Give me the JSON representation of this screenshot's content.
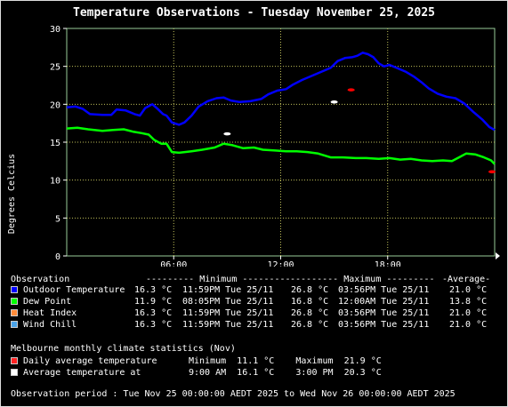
{
  "title": "Temperature Observations - Tuesday November 25, 2025",
  "chart_data": {
    "type": "line",
    "ylabel": "Degrees Celcius",
    "ylim": [
      0,
      30
    ],
    "yticks": [
      "0",
      "5",
      "10",
      "15",
      "20",
      "25",
      "30"
    ],
    "xlim": [
      0,
      24
    ],
    "xticks": [
      {
        "x": 6,
        "label": "06:00"
      },
      {
        "x": 12,
        "label": "12:00"
      },
      {
        "x": 18,
        "label": "18:00"
      }
    ],
    "grid": true,
    "series": [
      {
        "name": "Outdoor Temperature",
        "color": "#0000ff",
        "points": [
          [
            0,
            19.6
          ],
          [
            0.5,
            19.7
          ],
          [
            0.9,
            19.4
          ],
          [
            1.3,
            18.7
          ],
          [
            2,
            18.6
          ],
          [
            2.5,
            18.6
          ],
          [
            2.8,
            19.3
          ],
          [
            3.3,
            19.2
          ],
          [
            3.8,
            18.7
          ],
          [
            4.1,
            18.5
          ],
          [
            4.4,
            19.5
          ],
          [
            4.8,
            20.0
          ],
          [
            5.1,
            19.4
          ],
          [
            5.4,
            18.7
          ],
          [
            5.6,
            18.5
          ],
          [
            5.9,
            17.6
          ],
          [
            6.3,
            17.3
          ],
          [
            6.6,
            17.6
          ],
          [
            7.0,
            18.5
          ],
          [
            7.4,
            19.7
          ],
          [
            7.9,
            20.4
          ],
          [
            8.4,
            20.8
          ],
          [
            8.8,
            20.9
          ],
          [
            9.2,
            20.5
          ],
          [
            9.7,
            20.3
          ],
          [
            10.3,
            20.4
          ],
          [
            10.9,
            20.7
          ],
          [
            11.3,
            21.3
          ],
          [
            11.8,
            21.8
          ],
          [
            12.3,
            22.0
          ],
          [
            12.7,
            22.6
          ],
          [
            13.2,
            23.2
          ],
          [
            13.8,
            23.8
          ],
          [
            14.3,
            24.3
          ],
          [
            14.8,
            24.8
          ],
          [
            15.2,
            25.7
          ],
          [
            15.6,
            26.1
          ],
          [
            16.0,
            26.2
          ],
          [
            16.3,
            26.4
          ],
          [
            16.6,
            26.8
          ],
          [
            16.9,
            26.6
          ],
          [
            17.2,
            26.2
          ],
          [
            17.5,
            25.4
          ],
          [
            17.8,
            25.0
          ],
          [
            18.1,
            25.2
          ],
          [
            18.5,
            24.8
          ],
          [
            19.0,
            24.3
          ],
          [
            19.5,
            23.6
          ],
          [
            19.9,
            22.9
          ],
          [
            20.3,
            22.1
          ],
          [
            20.8,
            21.4
          ],
          [
            21.3,
            21.0
          ],
          [
            21.8,
            20.8
          ],
          [
            22.3,
            20.1
          ],
          [
            22.8,
            19.0
          ],
          [
            23.3,
            18.0
          ],
          [
            23.7,
            17.0
          ],
          [
            24,
            16.6
          ]
        ]
      },
      {
        "name": "Dew Point",
        "color": "#00ff00",
        "points": [
          [
            0,
            16.8
          ],
          [
            0.6,
            16.9
          ],
          [
            1.2,
            16.7
          ],
          [
            2,
            16.5
          ],
          [
            2.6,
            16.6
          ],
          [
            3.2,
            16.7
          ],
          [
            3.7,
            16.4
          ],
          [
            4.2,
            16.2
          ],
          [
            4.6,
            16.0
          ],
          [
            4.9,
            15.3
          ],
          [
            5.3,
            14.8
          ],
          [
            5.6,
            14.8
          ],
          [
            5.9,
            13.7
          ],
          [
            6.3,
            13.6
          ],
          [
            7.0,
            13.8
          ],
          [
            7.6,
            14.0
          ],
          [
            8.3,
            14.3
          ],
          [
            8.8,
            14.8
          ],
          [
            9.3,
            14.6
          ],
          [
            9.9,
            14.2
          ],
          [
            10.5,
            14.3
          ],
          [
            11.0,
            14.0
          ],
          [
            11.7,
            13.9
          ],
          [
            12.3,
            13.8
          ],
          [
            12.9,
            13.8
          ],
          [
            13.5,
            13.7
          ],
          [
            14.1,
            13.5
          ],
          [
            14.8,
            13.0
          ],
          [
            15.5,
            13.0
          ],
          [
            16.2,
            12.9
          ],
          [
            16.8,
            12.9
          ],
          [
            17.5,
            12.8
          ],
          [
            18.1,
            12.9
          ],
          [
            18.7,
            12.7
          ],
          [
            19.3,
            12.8
          ],
          [
            19.9,
            12.6
          ],
          [
            20.5,
            12.5
          ],
          [
            21.1,
            12.6
          ],
          [
            21.6,
            12.5
          ],
          [
            22.0,
            13.0
          ],
          [
            22.4,
            13.5
          ],
          [
            22.9,
            13.4
          ],
          [
            23.4,
            13.0
          ],
          [
            23.8,
            12.6
          ],
          [
            24,
            12.1
          ]
        ]
      }
    ],
    "markers": [
      {
        "name": "Daily average temperature - Minimum",
        "color": "#ff0000",
        "x": 23.85,
        "y": 11.1
      },
      {
        "name": "Daily average temperature - Maximum",
        "color": "#ff0000",
        "x": 15.95,
        "y": 21.9
      },
      {
        "name": "Average temperature at 9:00 AM",
        "color": "#ffffff",
        "x": 9.0,
        "y": 16.1
      },
      {
        "name": "Average temperature at 3:00 PM",
        "color": "#ffffff",
        "x": 15.0,
        "y": 20.3
      }
    ]
  },
  "legend": {
    "header": {
      "observation": "Observation",
      "minimum": "--------- Minimum ---------",
      "maximum": "--------- Maximum ---------",
      "average": "-Average-"
    },
    "rows": [
      {
        "label": "Outdoor Temperature",
        "color": "#0000ff",
        "min_val": "16.3 °C",
        "min_time": "11:59PM Tue 25/11",
        "max_val": "26.8 °C",
        "max_time": "03:56PM Tue 25/11",
        "avg": "21.0 °C"
      },
      {
        "label": "Dew Point",
        "color": "#00ff00",
        "min_val": "11.9 °C",
        "min_time": "08:05PM Tue 25/11",
        "max_val": "16.8 °C",
        "max_time": "12:00AM Tue 25/11",
        "avg": "13.8 °C"
      },
      {
        "label": "Heat Index",
        "color": "#ff8c3a",
        "min_val": "16.3 °C",
        "min_time": "11:59PM Tue 25/11",
        "max_val": "26.8 °C",
        "max_time": "03:56PM Tue 25/11",
        "avg": "21.0 °C"
      },
      {
        "label": "Wind Chill",
        "color": "#4aa3e8",
        "min_val": "16.3 °C",
        "min_time": "11:59PM Tue 25/11",
        "max_val": "26.8 °C",
        "max_time": "03:56PM Tue 25/11",
        "avg": "21.0 °C"
      }
    ]
  },
  "climate": {
    "header": "Melbourne monthly climate statistics (Nov)",
    "rows": [
      {
        "label": "Daily average temperature",
        "color": "#ff2222",
        "text": "Minimum  11.1 °C    Maximum  21.9 °C"
      },
      {
        "label": "Average temperature at",
        "color": "#ffffff",
        "text": "9:00 AM  16.1 °C    3:00 PM  20.3 °C"
      }
    ]
  },
  "footer": "Observation period : Tue Nov 25 00:00:00 AEDT 2025 to Wed Nov 26 00:00:00 AEDT 2025"
}
